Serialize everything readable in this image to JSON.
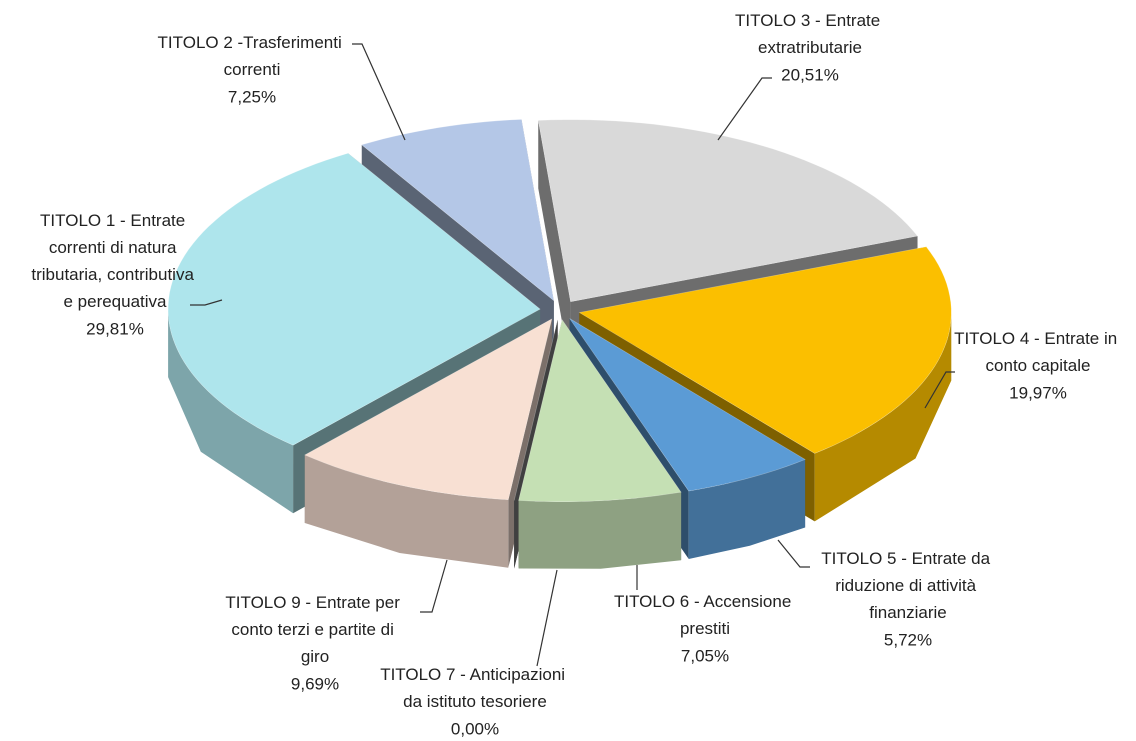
{
  "chart_data": {
    "type": "pie3d",
    "categories": [
      "TITOLO 1 - Entrate correnti di natura tributaria, contributiva e perequativa",
      "TITOLO 2 -Trasferimenti correnti",
      "TITOLO 3 - Entrate extratributarie",
      "TITOLO 4 - Entrate in conto capitale",
      "TITOLO 5 - Entrate da riduzione di attività finanziarie",
      "TITOLO 6 - Accensione prestiti",
      "TITOLO 7 - Anticipazioni da istituto tesoriere",
      "TITOLO 9 - Entrate per conto terzi e partite di giro"
    ],
    "values": [
      29.81,
      7.25,
      20.51,
      19.97,
      5.72,
      7.05,
      0,
      9.69
    ],
    "value_labels": [
      "29,81%",
      "7,25%",
      "20,51%",
      "19,97%",
      "5,72%",
      "7,05%",
      "0,00%",
      "9,69%"
    ],
    "colors": [
      "#aee5ec",
      "#b4c7e7",
      "#d9d9d9",
      "#fbbf00",
      "#5b9bd5",
      "#c5e0b4",
      "#7f7f7f",
      "#f8e0d3"
    ]
  }
}
